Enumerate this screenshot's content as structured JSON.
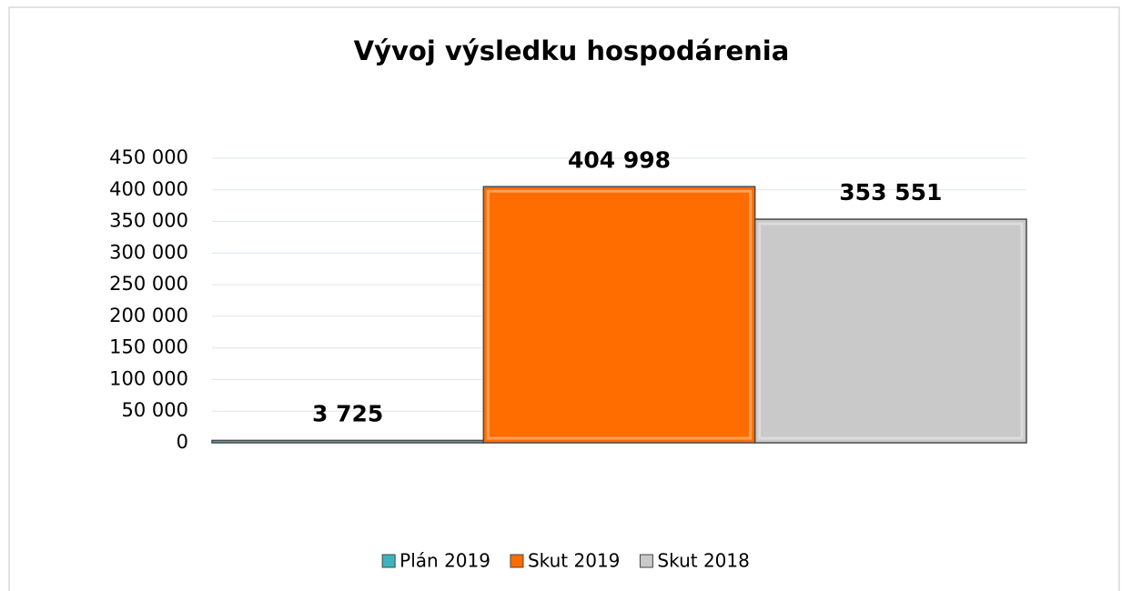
{
  "chart_data": {
    "type": "bar",
    "title": "Vývoj výsledku hospodárenia",
    "categories": [
      null
    ],
    "series": [
      {
        "name": "Plán 2019",
        "color": "#3cb4bf",
        "values": [
          3725
        ],
        "value_labels": [
          "3 725"
        ]
      },
      {
        "name": "Skut 2019",
        "color": "#ff6d00",
        "values": [
          404998
        ],
        "value_labels": [
          "404 998"
        ]
      },
      {
        "name": "Skut 2018",
        "color": "#c9c9c9",
        "values": [
          353551
        ],
        "value_labels": [
          "353 551"
        ]
      }
    ],
    "ylim": [
      0,
      450000
    ],
    "yticks": [
      0,
      {
        "value": 50000,
        "label": "50 000"
      },
      {
        "value": 100000,
        "label": "100 000"
      },
      {
        "value": 150000,
        "label": "150 000"
      },
      {
        "value": 200000,
        "label": "200 000"
      },
      {
        "value": 250000,
        "label": "250 000"
      },
      {
        "value": 300000,
        "label": "300 000"
      },
      {
        "value": 350000,
        "label": "350 000"
      },
      {
        "value": 400000,
        "label": "400 000"
      },
      {
        "value": 450000,
        "label": "450 000"
      }
    ],
    "grid": true,
    "legend": "bottom"
  }
}
